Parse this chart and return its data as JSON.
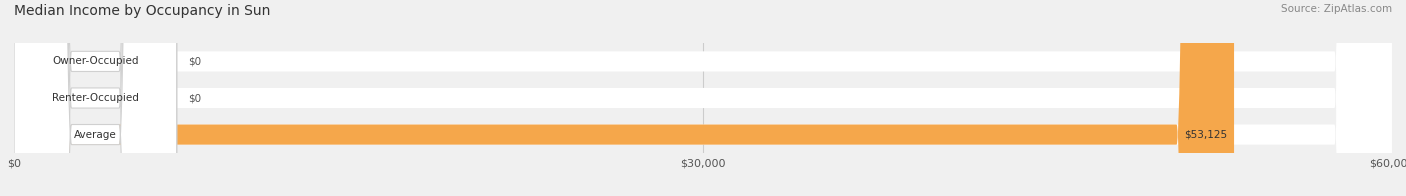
{
  "title": "Median Income by Occupancy in Sun",
  "source": "Source: ZipAtlas.com",
  "categories": [
    "Owner-Occupied",
    "Renter-Occupied",
    "Average"
  ],
  "values": [
    0,
    0,
    53125
  ],
  "bar_colors": [
    "#6ecdd1",
    "#c9a8d4",
    "#f5a74b"
  ],
  "value_labels": [
    "$0",
    "$0",
    "$53,125"
  ],
  "xlim": [
    0,
    60000
  ],
  "xticks": [
    0,
    30000,
    60000
  ],
  "xticklabels": [
    "$0",
    "$30,000",
    "$60,000"
  ],
  "background_color": "#f0f0f0",
  "bar_height": 0.55,
  "figsize": [
    14.06,
    1.96
  ],
  "dpi": 100
}
